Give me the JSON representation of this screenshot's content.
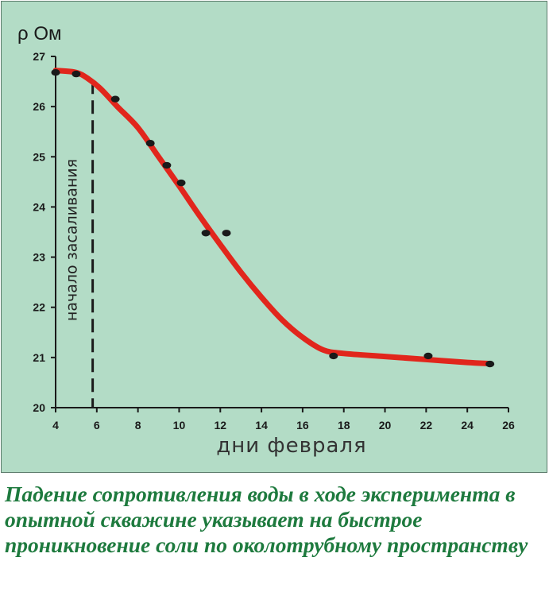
{
  "caption": "Падение сопротивления воды в ходе экспери­мен­та в опытной скважине указывает на быстрое проникновение соли по околотрубному пространству",
  "colors": {
    "panel_background": "#b3dcc6",
    "curve": "#e1261c",
    "points": "#1a1a1a",
    "caption": "#1e7a3e"
  },
  "chart_data": {
    "type": "scatter",
    "title": "",
    "ylabel": "ρ Ом",
    "xlabel": "дни февраля",
    "xlim": [
      4,
      26
    ],
    "ylim": [
      20,
      27
    ],
    "xticks": [
      4,
      6,
      8,
      10,
      12,
      14,
      16,
      18,
      20,
      22,
      24,
      26
    ],
    "yticks": [
      20,
      21,
      22,
      23,
      24,
      25,
      26,
      27
    ],
    "grid": false,
    "points": [
      {
        "x": 4.0,
        "y": 26.68
      },
      {
        "x": 5.0,
        "y": 26.65
      },
      {
        "x": 6.9,
        "y": 26.15
      },
      {
        "x": 8.6,
        "y": 25.27
      },
      {
        "x": 9.4,
        "y": 24.83
      },
      {
        "x": 10.1,
        "y": 24.48
      },
      {
        "x": 11.3,
        "y": 23.48
      },
      {
        "x": 12.3,
        "y": 23.48
      },
      {
        "x": 17.5,
        "y": 21.03
      },
      {
        "x": 22.1,
        "y": 21.03
      },
      {
        "x": 25.1,
        "y": 20.87
      }
    ],
    "fit_curve": [
      {
        "x": 4.0,
        "y": 26.72
      },
      {
        "x": 5.0,
        "y": 26.68
      },
      {
        "x": 5.6,
        "y": 26.55
      },
      {
        "x": 6.2,
        "y": 26.35
      },
      {
        "x": 7.0,
        "y": 26.0
      },
      {
        "x": 8.0,
        "y": 25.58
      },
      {
        "x": 9.0,
        "y": 25.0
      },
      {
        "x": 10.0,
        "y": 24.42
      },
      {
        "x": 11.0,
        "y": 23.82
      },
      {
        "x": 12.0,
        "y": 23.25
      },
      {
        "x": 13.0,
        "y": 22.7
      },
      {
        "x": 14.0,
        "y": 22.2
      },
      {
        "x": 15.0,
        "y": 21.75
      },
      {
        "x": 16.0,
        "y": 21.4
      },
      {
        "x": 17.0,
        "y": 21.15
      },
      {
        "x": 18.0,
        "y": 21.08
      },
      {
        "x": 20.0,
        "y": 21.02
      },
      {
        "x": 22.0,
        "y": 20.96
      },
      {
        "x": 24.0,
        "y": 20.9
      },
      {
        "x": 25.0,
        "y": 20.88
      }
    ],
    "annotations": [
      {
        "text": "начало засаливания",
        "x": 5.8,
        "style": "dashed-vertical-line"
      }
    ]
  }
}
